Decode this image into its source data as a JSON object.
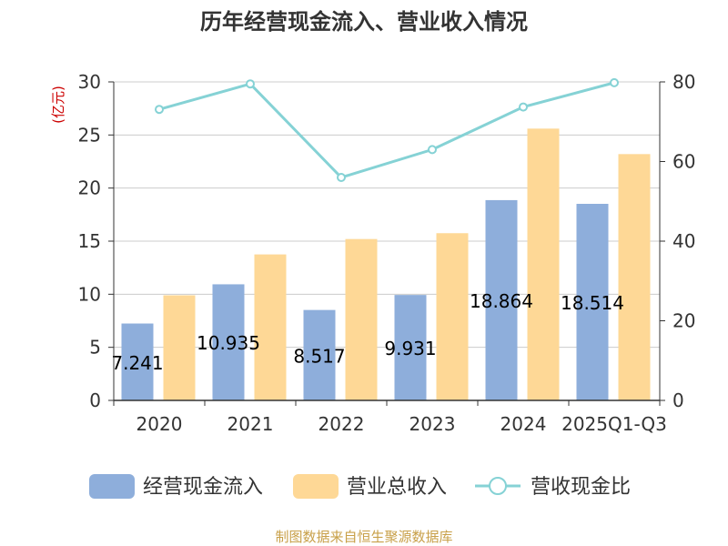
{
  "chart_data": {
    "type": "bar",
    "title": "历年经营现金流入、营业收入情况",
    "ylabel": "(亿元)",
    "ylim": [
      0,
      30
    ],
    "y2lim": [
      0,
      80
    ],
    "yticks": [
      0,
      5,
      10,
      15,
      20,
      25,
      30
    ],
    "y2ticks": [
      0,
      20,
      40,
      60,
      80
    ],
    "categories": [
      "2020",
      "2021",
      "2022",
      "2023",
      "2024",
      "2025Q1-Q3"
    ],
    "series": [
      {
        "name": "经营现金流入",
        "type": "bar",
        "axis": "left",
        "values": [
          7.241,
          10.935,
          8.517,
          9.931,
          18.864,
          18.514
        ],
        "labels": [
          "7.241",
          "10.935",
          "8.517",
          "9.931",
          "18.864",
          "18.514"
        ]
      },
      {
        "name": "营业总收入",
        "type": "bar",
        "axis": "left",
        "values": [
          9.9,
          13.75,
          15.2,
          15.75,
          25.6,
          23.2
        ]
      },
      {
        "name": "营收现金比",
        "type": "line",
        "axis": "right",
        "values": [
          73.1,
          79.5,
          56.0,
          63.0,
          73.7,
          79.8
        ]
      }
    ],
    "grid": true,
    "legend_position": "bottom"
  },
  "colors": {
    "cash_inflow": "#8eaedb",
    "revenue": "#fed896",
    "ratio_line": "#85d2d5",
    "axis": "#333333",
    "grid": "#cccccc",
    "ylabel": "#cc0000",
    "source": "#c8a049"
  },
  "source_text": "制图数据来自恒生聚源数据库"
}
